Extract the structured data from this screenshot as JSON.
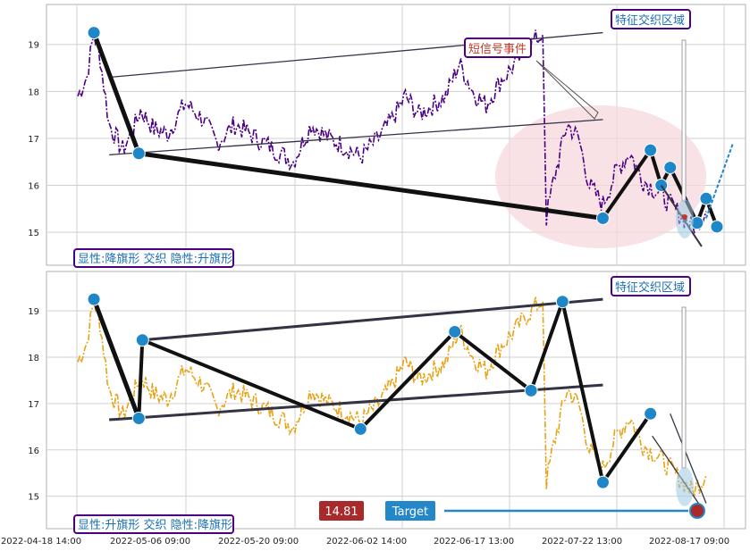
{
  "colors": {
    "top_series": "#4b0082",
    "bottom_series": "#e8a317",
    "marker": "#1f86c8",
    "zigzag": "#111111",
    "channel": "#333344",
    "label_border": "#4b0082",
    "label_text": "#1a6fb5",
    "event_text": "#c0392b",
    "target_bg": "#2487c7",
    "price_bg": "#a82a2a",
    "ellipse": "#f6d8dc"
  },
  "chart_data": [
    {
      "type": "line",
      "name": "top",
      "ylim": [
        14.3,
        19.85
      ],
      "yticks": [
        15,
        16,
        17,
        18,
        19
      ],
      "grid": true,
      "x": [
        0,
        1,
        2,
        3,
        4,
        5,
        6,
        7,
        8,
        9,
        10,
        11,
        12,
        13,
        14,
        15,
        16,
        17,
        18,
        19,
        20,
        21,
        22,
        23,
        24,
        25,
        26,
        27,
        28,
        29,
        30,
        31,
        32,
        33,
        34,
        35,
        36,
        37,
        38,
        39,
        40,
        41,
        42,
        43,
        44,
        45,
        46,
        47,
        48,
        49,
        50,
        51,
        52,
        53,
        54,
        55,
        56,
        57,
        58,
        59,
        60,
        61,
        62,
        63,
        64,
        65,
        66,
        67,
        68,
        69,
        70,
        71,
        72,
        73,
        74,
        75,
        76,
        77,
        78,
        79,
        80,
        81,
        82,
        83,
        84,
        85,
        86,
        87,
        88,
        89,
        90,
        91,
        92,
        93,
        94,
        95,
        96,
        97,
        98,
        99,
        100,
        101,
        102,
        103,
        104,
        105,
        106,
        107,
        108,
        109,
        110,
        111,
        112,
        113,
        114,
        115,
        116,
        117,
        118,
        119,
        120,
        121,
        122,
        123,
        124,
        125,
        126,
        127,
        128,
        129,
        130,
        131,
        132,
        133,
        134,
        135,
        136,
        137,
        138,
        139,
        140,
        141,
        142,
        143,
        144,
        145,
        146,
        147,
        148,
        149,
        150,
        151,
        152,
        153,
        154,
        155,
        156,
        157,
        158,
        159,
        160,
        161,
        162,
        163,
        164,
        165,
        166,
        167,
        168,
        169,
        170,
        171,
        172,
        173,
        174,
        175,
        176,
        177,
        178,
        179,
        180,
        181,
        182,
        183,
        184,
        185,
        186,
        187,
        188,
        189,
        190,
        191,
        192,
        193,
        194,
        195,
        196,
        197,
        198,
        199,
        200,
        201,
        202,
        203,
        204,
        205,
        206,
        207,
        208,
        209,
        210,
        211,
        212,
        213,
        214,
        215,
        216,
        217,
        218,
        219,
        220,
        221,
        222,
        223,
        224,
        225,
        226,
        227,
        228,
        229,
        230,
        231,
        232,
        233,
        234,
        235,
        236,
        237,
        238,
        239,
        240,
        241,
        242,
        243,
        244,
        245,
        246,
        247,
        248,
        249,
        250,
        251,
        252,
        253,
        254,
        255,
        256,
        257,
        258,
        259,
        260,
        261,
        262,
        263,
        264,
        265,
        266,
        267,
        268,
        269,
        270,
        271,
        272,
        273,
        274,
        275,
        276,
        277,
        278,
        279,
        280,
        281,
        282,
        283,
        284,
        285,
        286,
        287,
        288,
        289,
        290,
        291,
        292,
        293,
        294,
        295,
        296,
        297,
        298,
        299,
        300,
        301,
        302,
        303,
        304,
        305,
        306,
        307,
        308,
        309,
        310,
        311,
        312,
        313,
        314,
        315,
        316,
        317,
        318,
        319,
        320,
        321,
        322,
        323,
        324,
        325,
        326,
        327,
        328,
        329,
        330,
        331,
        332,
        333,
        334,
        335,
        336,
        337,
        338,
        339,
        340,
        341,
        342,
        343,
        344,
        345,
        346,
        347,
        348,
        349,
        350,
        351,
        352,
        353,
        354,
        355,
        356,
        357,
        358,
        359,
        360,
        361,
        362,
        363,
        364,
        365,
        366,
        367,
        368,
        369,
        370,
        371,
        372,
        373,
        374,
        375,
        376,
        377,
        378,
        379,
        380,
        381,
        382,
        383,
        384,
        385,
        386,
        387,
        388,
        389,
        390,
        391,
        392,
        393,
        394,
        395,
        396,
        397,
        398,
        399,
        400,
        401,
        402,
        403,
        404,
        405,
        406,
        407,
        408,
        409,
        410,
        411,
        412,
        413,
        414,
        415,
        416,
        417,
        418,
        419,
        420,
        421,
        422,
        423,
        424,
        425,
        426,
        427,
        428,
        429,
        430,
        431,
        432,
        433,
        434,
        435,
        436,
        437,
        438,
        439,
        440,
        441,
        442,
        443,
        444,
        445,
        446,
        447,
        448,
        449,
        450,
        451,
        452,
        453,
        454,
        455,
        456,
        457,
        458,
        459,
        460,
        461,
        462,
        463,
        464,
        465,
        466,
        467,
        468,
        469,
        470,
        471,
        472,
        473,
        474,
        475,
        476,
        477,
        478,
        479,
        480,
        481,
        482,
        483,
        484,
        485,
        486,
        487,
        488,
        489,
        490,
        491,
        492,
        493,
        494,
        495,
        496,
        497,
        498,
        499,
        500,
        501,
        502,
        503,
        504,
        505,
        506,
        507,
        508,
        509,
        510,
        511,
        512,
        513,
        514,
        515,
        516,
        517,
        518,
        519,
        520,
        521,
        522,
        523,
        524,
        525,
        526,
        527,
        528,
        529,
        530,
        531,
        532,
        533,
        534,
        535,
        536,
        537,
        538,
        539,
        540,
        541,
        542,
        543,
        544,
        545,
        546,
        547,
        548,
        549,
        550,
        551,
        552,
        553,
        554,
        555,
        556,
        557,
        558,
        559,
        560,
        561,
        562,
        563,
        564,
        565,
        566,
        567,
        568,
        569,
        570,
        571,
        572,
        573,
        574,
        575,
        576,
        577,
        578,
        579,
        580,
        581,
        582,
        583,
        584,
        585,
        586,
        587,
        588,
        589,
        590,
        591,
        592,
        593,
        594,
        595,
        596,
        597,
        598,
        599,
        600,
        601,
        602,
        603,
        604,
        605,
        606,
        607,
        608,
        609,
        610,
        611,
        612,
        613,
        614,
        615,
        616,
        617,
        618,
        619,
        620,
        621,
        622,
        623,
        624,
        625,
        626,
        627,
        628,
        629,
        630,
        631,
        632,
        633,
        634,
        635,
        636,
        637,
        638,
        639,
        640,
        641,
        642,
        643,
        644,
        645,
        646,
        647,
        648,
        649,
        650,
        651,
        652,
        653,
        654,
        655,
        656,
        657,
        658,
        659,
        660,
        661,
        662,
        663,
        664,
        665,
        666,
        667,
        668,
        669,
        670,
        671,
        672,
        673,
        674,
        675,
        676,
        677,
        678,
        679,
        680,
        681,
        682,
        683,
        684,
        685,
        686,
        687,
        688,
        689,
        690,
        691,
        692,
        693,
        694,
        695,
        696,
        697,
        698,
        699,
        700,
        701,
        702,
        703,
        704,
        705,
        706,
        707,
        708,
        709,
        710,
        711,
        712,
        713,
        714,
        715,
        716,
        717,
        718,
        719,
        720,
        721,
        722,
        723,
        724,
        725,
        726,
        727,
        728,
        729,
        730,
        731,
        732,
        733,
        734,
        735,
        736,
        737,
        738,
        739,
        740,
        741,
        742,
        743,
        744,
        745,
        746,
        747,
        748,
        749,
        750,
        751,
        752,
        753,
        754,
        755,
        756,
        757,
        758,
        759,
        760,
        761,
        762,
        763,
        764,
        765,
        766,
        767,
        768,
        769,
        770,
        771,
        772,
        773,
        774,
        775,
        776,
        777,
        778,
        779,
        780,
        781,
        782,
        783,
        784,
        785,
        786,
        787,
        788,
        789,
        790,
        791,
        792,
        793,
        794,
        795,
        796,
        797,
        798,
        799,
        800,
        801,
        802,
        803,
        804,
        805,
        806,
        807,
        808,
        809,
        810,
        811,
        812,
        813,
        814,
        815,
        816,
        817,
        818,
        819,
        820,
        821,
        822,
        823,
        824,
        825,
        826,
        827,
        828,
        829,
        830,
        831,
        832,
        833,
        834,
        835,
        836,
        837,
        838,
        839,
        840,
        841,
        842,
        843,
        844,
        845,
        846,
        847,
        848,
        849,
        850,
        851,
        852,
        853,
        854,
        855,
        856,
        857,
        858,
        859,
        860,
        861,
        862,
        863,
        864,
        865,
        866,
        867,
        868,
        869,
        870,
        871,
        872,
        873,
        874,
        875,
        876,
        877,
        878,
        879,
        880,
        881,
        882,
        883,
        884,
        885,
        886,
        887,
        888,
        889,
        890,
        891,
        892,
        893,
        894,
        895,
        896,
        897,
        898,
        899,
        900,
        901,
        902,
        903,
        904,
        905,
        906,
        907,
        908,
        909,
        910,
        911,
        912,
        913,
        914,
        915,
        916,
        917,
        918,
        919,
        920,
        921,
        922,
        923,
        924,
        925,
        926,
        927,
        928,
        929,
        930,
        931,
        932,
        933,
        934,
        935,
        936,
        937,
        938,
        939,
        940,
        941,
        942,
        943,
        944,
        945,
        946,
        947,
        948,
        949,
        950,
        951,
        952,
        953,
        954,
        955,
        956,
        957,
        958,
        959,
        960,
        961,
        962,
        963,
        964,
        965,
        966,
        967,
        968,
        969,
        970,
        971,
        972,
        973,
        974,
        975,
        976,
        977,
        978,
        979,
        980,
        981,
        982,
        983,
        984,
        985,
        986,
        987,
        988,
        989,
        990,
        991,
        992,
        993,
        994,
        995,
        996,
        997,
        998,
        999,
        1000
      ],
      "series_keypoints": [
        [
          0,
          17.9
        ],
        [
          10,
          18.3
        ],
        [
          18,
          19.25
        ],
        [
          25,
          18.7
        ],
        [
          35,
          17.3
        ],
        [
          50,
          16.75
        ],
        [
          60,
          17.1
        ],
        [
          70,
          17.6
        ],
        [
          85,
          17.2
        ],
        [
          100,
          17.1
        ],
        [
          120,
          17.75
        ],
        [
          140,
          17.4
        ],
        [
          155,
          16.9
        ],
        [
          175,
          17.3
        ],
        [
          200,
          17.0
        ],
        [
          220,
          16.75
        ],
        [
          240,
          16.5
        ],
        [
          260,
          17.3
        ],
        [
          280,
          17.0
        ],
        [
          300,
          16.8
        ],
        [
          315,
          16.6
        ],
        [
          335,
          17.0
        ],
        [
          350,
          17.4
        ],
        [
          365,
          17.9
        ],
        [
          380,
          17.5
        ],
        [
          395,
          17.7
        ],
        [
          410,
          17.9
        ],
        [
          425,
          18.6
        ],
        [
          440,
          18.0
        ],
        [
          455,
          17.7
        ],
        [
          470,
          18.2
        ],
        [
          490,
          18.65
        ],
        [
          500,
          18.9
        ],
        [
          510,
          19.1
        ],
        [
          518,
          19.2
        ],
        [
          522,
          15.3
        ],
        [
          530,
          16.1
        ],
        [
          545,
          17.3
        ],
        [
          558,
          17.0
        ],
        [
          570,
          16.0
        ],
        [
          585,
          15.6
        ],
        [
          600,
          16.3
        ],
        [
          615,
          16.7
        ],
        [
          630,
          16.1
        ],
        [
          650,
          15.8
        ],
        [
          670,
          15.4
        ],
        [
          685,
          15.1
        ],
        [
          700,
          15.45
        ]
      ],
      "pivots": [
        [
          18,
          19.25
        ],
        [
          68,
          16.68
        ],
        [
          585,
          15.3
        ],
        [
          638,
          16.75
        ],
        [
          650,
          16.0
        ],
        [
          660,
          16.38
        ],
        [
          690,
          15.2
        ],
        [
          700,
          15.72
        ],
        [
          712,
          15.12
        ]
      ],
      "channel_upper": [
        [
          35,
          18.3
        ],
        [
          585,
          19.25
        ]
      ],
      "channel_lower": [
        [
          35,
          16.65
        ],
        [
          585,
          17.4
        ]
      ],
      "labels": {
        "pattern": "显性:降旗形 交织 隐性:升旗形",
        "zone": "特征交织区域",
        "event": "短信号事件"
      }
    },
    {
      "type": "line",
      "name": "bottom",
      "ylim": [
        14.3,
        19.85
      ],
      "yticks": [
        15,
        16,
        17,
        18,
        19
      ],
      "grid": true,
      "pivots": [
        [
          18,
          19.25
        ],
        [
          68,
          16.68
        ],
        [
          72,
          18.37
        ],
        [
          315,
          16.45
        ],
        [
          420,
          18.55
        ],
        [
          505,
          17.28
        ],
        [
          540,
          19.2
        ],
        [
          585,
          15.3
        ],
        [
          638,
          16.78
        ]
      ],
      "channel_upper": [
        [
          72,
          18.37
        ],
        [
          585,
          19.25
        ]
      ],
      "channel_lower": [
        [
          35,
          16.65
        ],
        [
          585,
          17.4
        ]
      ],
      "labels": {
        "pattern": "显性:升旗形 交织 隐性:降旗形",
        "zone": "特征交织区域",
        "price": "14.81",
        "target": "Target"
      }
    }
  ],
  "x_axis": {
    "tick_labels": [
      "2022-04-18 14:00",
      "2022-05-06 09:00",
      "2022-05-20 09:00",
      "2022-06-02 14:00",
      "2022-06-17 13:00",
      "2022-07-22 13:00",
      "2022-08-17 09:00"
    ],
    "tick_positions": [
      0,
      100,
      200,
      300,
      400,
      500,
      600
    ]
  }
}
